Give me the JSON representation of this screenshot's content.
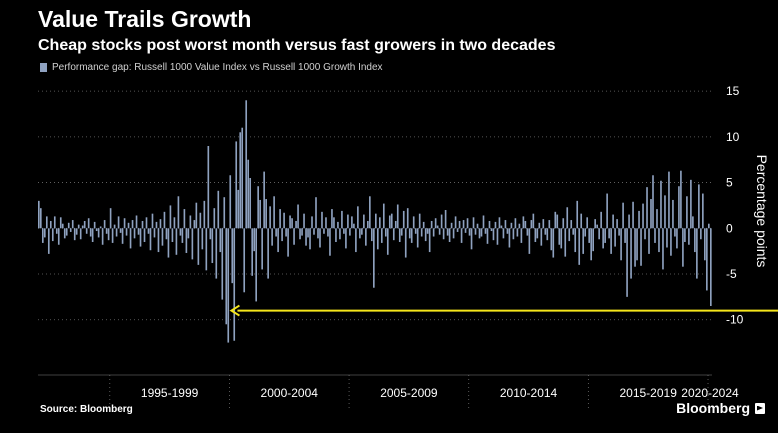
{
  "title": "Value Trails Growth",
  "subtitle": "Cheap stocks post worst month versus fast growers in two decades",
  "source": "Source: Bloomberg",
  "brand": "Bloomberg",
  "colors": {
    "background": "#000000",
    "bar": "#8fa2c0",
    "grid": "#6e6e6e",
    "arrow": "#f5e61b",
    "text": "#ffffff"
  },
  "chart_data": {
    "type": "bar",
    "series": [
      {
        "name": "Performance gap: Russell 1000 Value Index vs Russell 1000 Growth Index",
        "x_start": "1992-01",
        "frequency": "monthly",
        "values": [
          3,
          2.2,
          -1.6,
          -1,
          1.3,
          -2.8,
          0.8,
          -1.4,
          1.3,
          -0.6,
          -1.8,
          1.2,
          0.5,
          -1.1,
          -0.8,
          0.6,
          -0.4,
          0.9,
          -1.3,
          -0.7,
          0.4,
          -1.2,
          0.3,
          0.8,
          -0.6,
          1.1,
          -0.9,
          -1.5,
          0.7,
          -0.3,
          -1,
          0.2,
          -1.8,
          0.9,
          -0.6,
          -1.3,
          2.2,
          -1.6,
          0.4,
          -0.9,
          1.3,
          -0.5,
          -1.7,
          1.1,
          -0.8,
          0.6,
          -2.2,
          0.9,
          -1.1,
          1.4,
          -0.7,
          -2,
          0.8,
          -1.5,
          1.2,
          -0.6,
          -2.4,
          1.6,
          -1,
          0.7,
          -2.6,
          1,
          -1.9,
          1.8,
          -1.2,
          -3.2,
          2.5,
          -1.5,
          1.2,
          -2.9,
          3.5,
          -0.8,
          -1.6,
          2.1,
          -2.7,
          -1.1,
          1.4,
          -3.4,
          0.9,
          2.8,
          -4,
          1.7,
          -2.3,
          3,
          -4.6,
          9,
          -1.2,
          -3.8,
          2.2,
          -5.5,
          4.1,
          -2.6,
          -7.8,
          3.4,
          -10.5,
          -12.5,
          5.8,
          -6,
          -12.3,
          9.5,
          4.2,
          10.5,
          11,
          -7,
          14,
          7.5,
          5.5,
          -5.2,
          -2.5,
          -8,
          4.6,
          3.1,
          -4.5,
          6.2,
          3.2,
          -5.5,
          2.4,
          -1.9,
          3.5,
          -0.9,
          -2.6,
          2.1,
          -1.4,
          1.7,
          -0.9,
          -3.1,
          1.4,
          1.1,
          -1.8,
          0.8,
          2.6,
          -1.2,
          -0.8,
          1.6,
          -1.9,
          -1,
          -2.3,
          1.3,
          -0.7,
          3.4,
          -1.1,
          -2.1,
          1.8,
          -0.6,
          1.2,
          -0.9,
          -3,
          2.1,
          1.2,
          -1.5,
          0.7,
          -1.2,
          1.9,
          -0.6,
          -2.2,
          1.5,
          -0.8,
          1.3,
          0.5,
          -2.6,
          2.4,
          -1.1,
          -0.7,
          1.5,
          -1.9,
          0.8,
          3.5,
          -1.4,
          -6.5,
          1.6,
          -2.3,
          1.2,
          -1.6,
          2.7,
          -0.9,
          -2.9,
          1.4,
          1.6,
          -1.3,
          0.8,
          2.6,
          -1.5,
          -0.8,
          1.9,
          -3.2,
          2.2,
          -1.1,
          -1.6,
          1.3,
          -0.6,
          -2.1,
          1.6,
          -0.9,
          0.7,
          -1.4,
          -0.6,
          -2.6,
          0.8,
          -0.9,
          1.1,
          0.3,
          -0.7,
          1.5,
          -1.2,
          2,
          -0.8,
          -1.5,
          0.6,
          -1.1,
          1.3,
          -0.4,
          0.8,
          -1.6,
          0.9,
          -0.5,
          1.1,
          -0.8,
          -2.3,
          1.2,
          -0.7,
          0.5,
          -1.1,
          -0.9,
          1.4,
          -0.6,
          -1.7,
          0.8,
          -0.3,
          -1.3,
          0.7,
          -1.8,
          1.2,
          0.3,
          -1.1,
          0.9,
          -0.6,
          -2.1,
          0.6,
          -1.2,
          1.1,
          -0.9,
          0.5,
          -1.6,
          1.3,
          0.8,
          -0.8,
          -2.8,
          0.9,
          1.6,
          -1.5,
          -1.1,
          0.6,
          -1.9,
          1,
          -0.7,
          -1.3,
          0.9,
          -2.4,
          -3.2,
          1.8,
          1.5,
          -1.8,
          -2.2,
          1.1,
          -3.1,
          2.3,
          -1.4,
          0.9,
          -0.7,
          -2.6,
          3,
          -4,
          1.6,
          -2.8,
          -0.9,
          1.2,
          -1.6,
          -3.5,
          -2.5,
          1,
          0.4,
          -1.2,
          1.8,
          -2.2,
          -1.6,
          3.8,
          -1.1,
          -2.8,
          1.5,
          -2,
          1,
          -0.8,
          -3.5,
          2.8,
          -1.6,
          -7.5,
          1.5,
          -5.5,
          2.9,
          -4.2,
          -3.5,
          1.9,
          -4.1,
          2.7,
          -1.2,
          4.5,
          -2.8,
          3.2,
          5.8,
          -1.6,
          2.1,
          -2.6,
          5.2,
          -4.5,
          3.6,
          -2.1,
          6.2,
          -3,
          3.1,
          -0.9,
          -2.2,
          4.6,
          6.3,
          -4.2,
          -1.5,
          3.5,
          -1.8,
          5.3,
          1.3,
          -2.6,
          -5.5,
          4.8,
          -1.2,
          3.8,
          -3.5,
          -6.8,
          0.5,
          -8.5
        ]
      }
    ],
    "x_tick_labels": [
      "1995-1999",
      "2000-2004",
      "2005-2009",
      "2010-2014",
      "2015-2019",
      "2020-2024"
    ],
    "ylabel": "Percentage points",
    "yticks": [
      15,
      10,
      5,
      0,
      -5,
      -10
    ],
    "ylim": [
      -15.5,
      16
    ],
    "grid": true,
    "legend_position": "top-left",
    "y_axis_side": "right",
    "annotation": {
      "type": "arrow",
      "direction": "left",
      "value": -9,
      "x_from": "2024-06",
      "x_to": "2000-02"
    }
  }
}
